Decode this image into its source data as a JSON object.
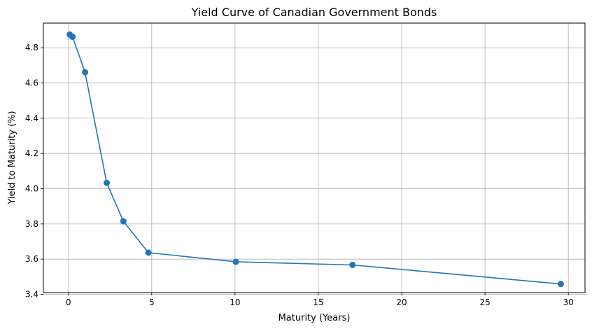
{
  "chart_data": {
    "type": "line",
    "title": "Yield Curve of Canadian Government Bonds",
    "xlabel": "Maturity (Years)",
    "ylabel": "Yield to Maturity (%)",
    "xlim": [
      -1.5,
      31
    ],
    "ylim": [
      3.41,
      4.94
    ],
    "xticks": [
      0,
      5,
      10,
      15,
      20,
      25,
      30
    ],
    "xtick_labels": [
      "0",
      "5",
      "10",
      "15",
      "20",
      "25",
      "30"
    ],
    "yticks": [
      3.4,
      3.6,
      3.8,
      4.0,
      4.2,
      4.4,
      4.6,
      4.8
    ],
    "ytick_labels": [
      "3.4",
      "3.6",
      "3.8",
      "4.0",
      "4.2",
      "4.4",
      "4.6",
      "4.8"
    ],
    "grid": true,
    "marker": "circle",
    "series": [
      {
        "color": "#1f77b4",
        "x": [
          0.08,
          0.25,
          1.0,
          2.3,
          3.3,
          4.8,
          10.05,
          17.05,
          29.55
        ],
        "y": [
          4.875,
          4.862,
          4.661,
          4.033,
          3.815,
          3.637,
          3.585,
          3.567,
          3.459
        ]
      }
    ]
  }
}
